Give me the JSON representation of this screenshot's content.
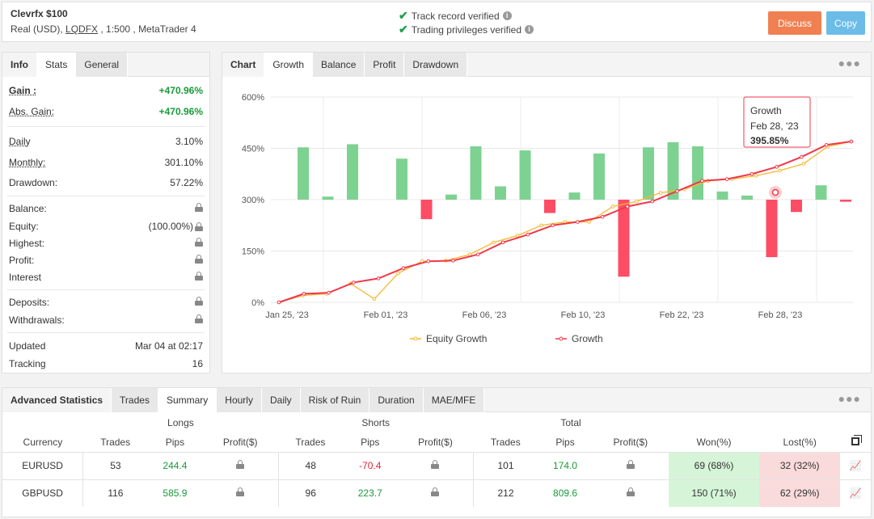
{
  "header": {
    "title": "Clevrfx $100",
    "subtitle_prefix": "Real (USD), ",
    "broker": "LQDFX",
    "subtitle_suffix": " , 1:500 , MetaTrader 4",
    "verified_1": "Track record verified",
    "verified_2": "Trading privileges verified",
    "discuss": "Discuss",
    "copy": "Copy"
  },
  "info": {
    "tabs": [
      "Info",
      "Stats",
      "General"
    ],
    "gain_label": "Gain :",
    "gain": "+470.96%",
    "abs_gain_label": "Abs. Gain:",
    "abs_gain": "+470.96%",
    "daily_label": "Daily",
    "daily": "3.10%",
    "monthly_label": "Monthly:",
    "monthly": "301.10%",
    "drawdown_label": "Drawdown:",
    "drawdown": "57.22%",
    "balance_label": "Balance:",
    "equity_label": "Equity:",
    "equity": "(100.00%)",
    "highest_label": "Highest:",
    "profit_label": "Profit:",
    "interest_label": "Interest",
    "deposits_label": "Deposits:",
    "withdrawals_label": "Withdrawals:",
    "updated_label": "Updated",
    "updated": "Mar 04 at 02:17",
    "tracking_label": "Tracking",
    "tracking": "16"
  },
  "chart_tabs": [
    "Chart",
    "Growth",
    "Balance",
    "Profit",
    "Drawdown"
  ],
  "chart_data": {
    "type": "line",
    "y_ticks": [
      "600%",
      "450%",
      "300%",
      "150%",
      "0%"
    ],
    "x_ticks": [
      "Jan 25, '23",
      "Feb 01, '23",
      "Feb 06, '23",
      "Feb 10, '23",
      "Feb 22, '23",
      "Feb 28, '23"
    ],
    "ylim": [
      0,
      600
    ],
    "series": [
      {
        "name": "Equity Growth",
        "color": "#f5b830",
        "values": [
          0,
          20,
          25,
          55,
          10,
          85,
          120,
          122,
          140,
          175,
          195,
          225,
          235,
          235,
          280,
          295,
          320,
          330,
          355,
          360,
          370,
          385,
          405,
          455,
          470
        ]
      },
      {
        "name": "Growth",
        "color": "#f0384a",
        "values": [
          0,
          25,
          28,
          58,
          70,
          100,
          120,
          122,
          140,
          175,
          198,
          225,
          235,
          250,
          280,
          295,
          325,
          355,
          360,
          375,
          395.85,
          425,
          460,
          470
        ]
      }
    ],
    "bars_pct": [
      51,
      3,
      54,
      0,
      40,
      -19,
      5,
      52,
      13,
      48,
      -13,
      7,
      45,
      -75,
      51,
      56,
      52,
      8,
      4,
      -56,
      -12,
      14,
      -2
    ],
    "tooltip": {
      "title": "Growth",
      "date": "Feb 28, '23",
      "value": "395.85%"
    }
  },
  "adv": {
    "tabs": [
      "Advanced Statistics",
      "Trades",
      "Summary",
      "Hourly",
      "Daily",
      "Risk of Ruin",
      "Duration",
      "MAE/MFE"
    ],
    "groups": [
      "Longs",
      "Shorts",
      "Total"
    ],
    "columns": [
      "Currency",
      "Trades",
      "Pips",
      "Profit($)",
      "Trades",
      "Pips",
      "Profit($)",
      "Trades",
      "Pips",
      "Profit($)",
      "Won(%)",
      "Lost(%)"
    ],
    "rows": [
      {
        "currency": "EURUSD",
        "l_trades": "53",
        "l_pips": "244.4",
        "s_trades": "48",
        "s_pips": "-70.4",
        "t_trades": "101",
        "t_pips": "174.0",
        "won": "69 (68%)",
        "lost": "32 (32%)"
      },
      {
        "currency": "GBPUSD",
        "l_trades": "116",
        "l_pips": "585.9",
        "s_trades": "96",
        "s_pips": "223.7",
        "t_trades": "212",
        "t_pips": "809.6",
        "won": "150 (71%)",
        "lost": "62 (29%)"
      }
    ]
  }
}
